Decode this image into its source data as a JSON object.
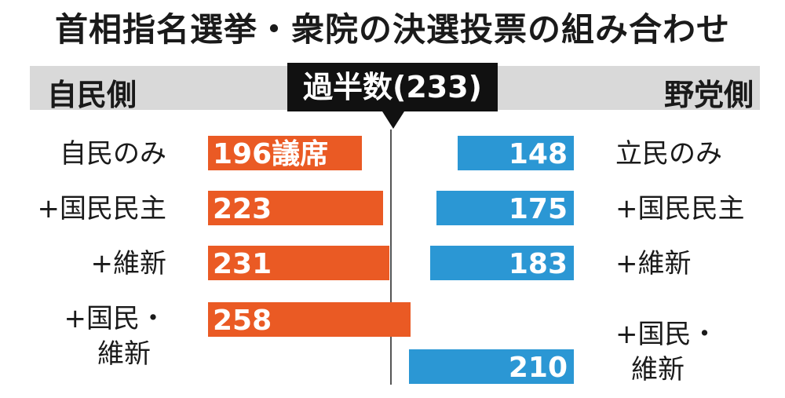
{
  "title": "首相指名選挙・衆院の決選投票の組み合わせ",
  "left_header": "自民側",
  "right_header": "野党側",
  "majority_label": "過半数(233)",
  "colors": {
    "left_bar": "#ea5a24",
    "right_bar": "#2b97d4",
    "header_band": "#d9d9d9",
    "majority_box": "#111111"
  },
  "chart_data": [
    {
      "type": "bar",
      "side": "自民側",
      "orientation": "horizontal",
      "categories": [
        "自民のみ",
        "+国民民主",
        "+維新",
        "+国民・維新"
      ],
      "values": [
        196,
        223,
        231,
        258
      ],
      "data_labels": [
        "196議席",
        "223",
        "231",
        "258"
      ],
      "reference_line": 233
    },
    {
      "type": "bar",
      "side": "野党側",
      "orientation": "horizontal",
      "categories": [
        "立民のみ",
        "+国民民主",
        "+維新",
        "+国民・維新"
      ],
      "values": [
        148,
        175,
        183,
        210
      ],
      "data_labels": [
        "148",
        "175",
        "183",
        "210"
      ],
      "reference_line": 233
    }
  ],
  "rows": {
    "left": [
      {
        "label": "自民のみ"
      },
      {
        "label": "+国民民主"
      },
      {
        "label": "+維新"
      },
      {
        "label_line1": "+国民・",
        "label_line2": "維新"
      }
    ],
    "right": [
      {
        "label": "立民のみ"
      },
      {
        "label": "+国民民主"
      },
      {
        "label": "+維新"
      },
      {
        "label_line1": "+国民・",
        "label_line2": "維新"
      }
    ]
  }
}
